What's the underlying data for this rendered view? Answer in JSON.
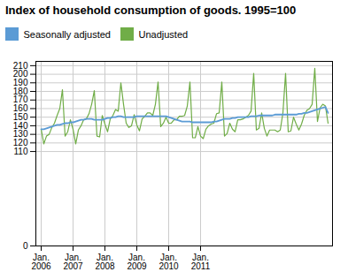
{
  "chart_data": {
    "type": "line",
    "title": "Index of household consumption of goods. 1995=100",
    "categories": [
      "Jan.\n2006",
      null,
      null,
      null,
      null,
      null,
      null,
      null,
      null,
      null,
      null,
      null,
      "Jan.\n2007",
      null,
      null,
      null,
      null,
      null,
      null,
      null,
      null,
      null,
      null,
      null,
      "Jan.\n2008",
      null,
      null,
      null,
      null,
      null,
      null,
      null,
      null,
      null,
      null,
      null,
      "Jan.\n2009",
      null,
      null,
      null,
      null,
      null,
      null,
      null,
      null,
      null,
      null,
      null,
      "Jan.\n2010",
      null,
      null,
      null,
      null,
      null,
      null,
      null,
      null,
      null,
      null,
      null,
      "Jan.\n2011",
      null,
      null,
      null,
      null,
      null,
      null,
      null,
      null,
      null,
      null,
      null,
      null,
      null,
      null,
      null,
      null,
      null,
      null,
      null,
      null,
      null,
      null,
      null,
      null,
      null,
      null,
      null,
      null,
      null,
      null,
      null,
      null,
      null,
      null,
      null,
      null,
      null,
      null,
      null,
      null,
      null,
      null,
      null,
      null,
      null,
      null,
      null,
      null
    ],
    "series": [
      {
        "name": "Seasonally adjusted",
        "color": "#5b9bd5",
        "values": [
          136,
          136,
          137,
          138,
          139,
          140,
          141,
          141,
          142,
          143,
          143,
          144,
          144,
          145,
          146,
          147,
          147,
          148,
          148,
          148,
          147,
          147,
          147,
          147,
          148,
          149,
          149,
          150,
          150,
          151,
          151,
          150,
          150,
          150,
          150,
          150,
          151,
          151,
          151,
          151,
          151,
          151,
          151,
          151,
          151,
          151,
          151,
          151,
          150,
          149,
          148,
          147,
          146,
          145,
          145,
          145,
          145,
          144,
          144,
          144,
          144,
          144,
          144,
          144,
          144,
          145,
          145,
          146,
          147,
          148,
          148,
          148,
          149,
          149,
          150,
          150,
          150,
          150,
          150,
          151,
          151,
          151,
          152,
          152,
          152,
          152,
          152,
          152,
          153,
          153,
          153,
          153,
          153,
          153,
          153,
          153,
          153,
          154,
          154,
          155,
          155,
          156,
          157,
          158,
          159,
          160,
          161,
          162,
          155
        ]
      },
      {
        "name": "Unadjusted",
        "color": "#70ad47",
        "values": [
          136,
          119,
          128,
          130,
          138,
          143,
          152,
          160,
          182,
          128,
          133,
          147,
          136,
          119,
          135,
          140,
          147,
          148,
          154,
          165,
          181,
          128,
          127,
          152,
          142,
          133,
          148,
          152,
          159,
          157,
          190,
          165,
          143,
          138,
          140,
          153,
          141,
          134,
          148,
          151,
          155,
          155,
          152,
          165,
          191,
          139,
          143,
          150,
          143,
          143,
          147,
          147,
          151,
          151,
          152,
          163,
          191,
          126,
          126,
          139,
          128,
          125,
          136,
          140,
          142,
          143,
          154,
          155,
          191,
          128,
          131,
          143,
          136,
          133,
          147,
          147,
          148,
          150,
          152,
          157,
          201,
          135,
          137,
          155,
          137,
          128,
          135,
          135,
          135,
          133,
          135,
          155,
          201,
          133,
          134,
          150,
          142,
          135,
          142,
          152,
          158,
          160,
          165,
          207,
          145,
          161,
          165,
          163,
          143
        ]
      }
    ],
    "ylim": [
      0,
      215
    ],
    "yticks": [
      0,
      110,
      120,
      130,
      140,
      150,
      160,
      170,
      180,
      190,
      200,
      210
    ],
    "grid": true,
    "legend": "top"
  }
}
